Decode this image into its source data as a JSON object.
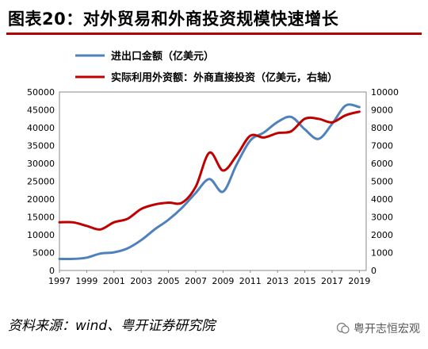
{
  "title": "图表20：对外贸易和外商投资规模快速增长",
  "source": "资料来源：wind、粤开证券研究院",
  "watermark": "粤开志恒宏观",
  "colors": {
    "trade": "#4f81bd",
    "fdi": "#c00000",
    "title_rule": "#b00000"
  },
  "chart_data": {
    "type": "line",
    "x_ticks": [
      1997,
      1999,
      2001,
      2003,
      2005,
      2007,
      2009,
      2011,
      2013,
      2015,
      2017,
      2019
    ],
    "xlim": [
      1997,
      2019.5
    ],
    "y_left": {
      "lim": [
        0,
        50000
      ],
      "ticks": [
        0,
        5000,
        10000,
        15000,
        20000,
        25000,
        30000,
        35000,
        40000,
        45000,
        50000
      ]
    },
    "y_right": {
      "lim": [
        0,
        10000
      ],
      "ticks": [
        0,
        1000,
        2000,
        3000,
        4000,
        5000,
        6000,
        7000,
        8000,
        9000,
        10000
      ]
    },
    "legend_placement": "top-left",
    "series": [
      {
        "name": "进出口金额（亿美元）",
        "axis": "left",
        "x": [
          1997,
          1998,
          1999,
          2000,
          2001,
          2002,
          2003,
          2004,
          2005,
          2006,
          2007,
          2008,
          2009,
          2010,
          2011,
          2012,
          2013,
          2014,
          2015,
          2016,
          2017,
          2018,
          2019
        ],
        "values": [
          3252,
          3239,
          3606,
          4743,
          5097,
          6208,
          8510,
          11546,
          14219,
          17604,
          21762,
          25633,
          22075,
          29740,
          36419,
          38671,
          41590,
          43015,
          39530,
          36856,
          41071,
          46224,
          45779
        ]
      },
      {
        "name": "实际利用外资额：外商直接投资（亿美元，右轴）",
        "axis": "right",
        "x": [
          1997,
          1998,
          1999,
          2000,
          2001,
          2002,
          2003,
          2004,
          2005,
          2006,
          2007,
          2008,
          2009,
          2010,
          2011,
          2012,
          2013,
          2014,
          2015,
          2016,
          2017,
          2018,
          2019
        ],
        "values": [
          2700,
          2700,
          2500,
          2300,
          2700,
          2900,
          3450,
          3700,
          3800,
          3800,
          4700,
          6600,
          5600,
          6450,
          7550,
          7450,
          7700,
          7800,
          8500,
          8500,
          8300,
          8700,
          8900
        ]
      }
    ]
  }
}
